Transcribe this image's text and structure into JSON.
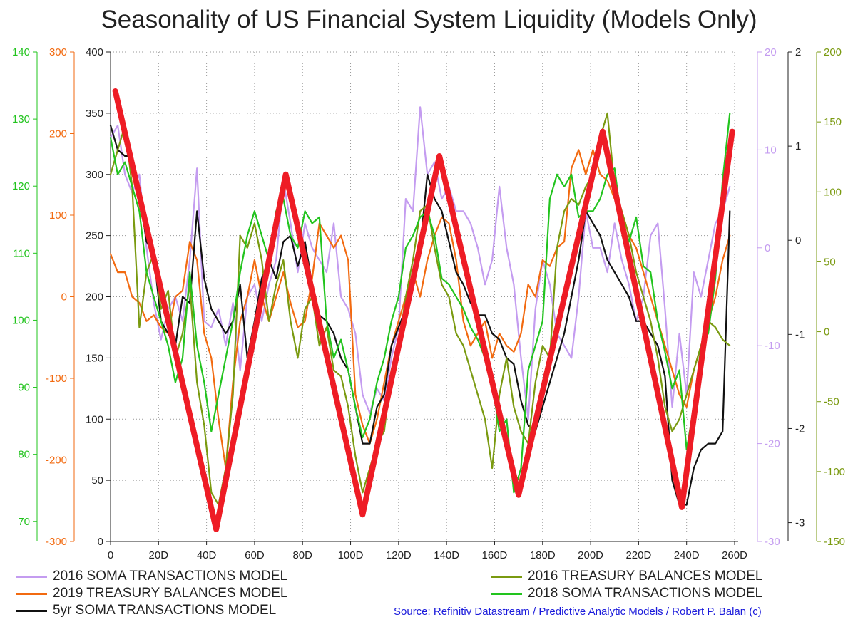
{
  "chart_data": {
    "type": "line",
    "title": "Seasonality of US Financial System Liquidity (Models Only)",
    "x_range": [
      0,
      260
    ],
    "x_ticks": [
      "0",
      "20D",
      "40D",
      "60D",
      "80D",
      "100D",
      "120D",
      "140D",
      "160D",
      "180D",
      "200D",
      "220D",
      "240D",
      "260D"
    ],
    "x_tick_values": [
      0,
      20,
      40,
      60,
      80,
      100,
      120,
      140,
      160,
      180,
      200,
      220,
      240,
      260
    ],
    "grid": true,
    "legend_position": "bottom",
    "source": "Source: Refinitiv Datastream / Predictive Analytic Models  / Robert P. Balan (c)",
    "axes": [
      {
        "id": "green_left",
        "side": "left",
        "color": "#22c41e",
        "range": [
          67,
          140
        ],
        "ticks": [
          "70",
          "80",
          "90",
          "100",
          "110",
          "120",
          "130",
          "140"
        ],
        "tick_values": [
          70,
          80,
          90,
          100,
          110,
          120,
          130,
          140
        ]
      },
      {
        "id": "orange_left",
        "side": "left",
        "color": "#f26a10",
        "range": [
          -300,
          300
        ],
        "ticks": [
          "-300",
          "-200",
          "-100",
          "0",
          "100",
          "200",
          "300"
        ],
        "tick_values": [
          -300,
          -200,
          -100,
          0,
          100,
          200,
          300
        ]
      },
      {
        "id": "main_left",
        "side": "left",
        "color": "#222222",
        "range": [
          0,
          400
        ],
        "ticks": [
          "0",
          "50",
          "100",
          "150",
          "200",
          "250",
          "300",
          "350",
          "400"
        ],
        "tick_values": [
          0,
          50,
          100,
          150,
          200,
          250,
          300,
          350,
          400
        ]
      },
      {
        "id": "purple_right",
        "side": "right",
        "color": "#c49cf0",
        "range": [
          -30,
          20
        ],
        "ticks": [
          "-30",
          "-20",
          "-10",
          "0",
          "10",
          "20"
        ],
        "tick_values": [
          -30,
          -20,
          -10,
          0,
          10,
          20
        ]
      },
      {
        "id": "black_right",
        "side": "right",
        "color": "#222222",
        "range": [
          -3.2,
          2
        ],
        "ticks": [
          "-3",
          "-2",
          "-1",
          "0",
          "1",
          "2"
        ],
        "tick_values": [
          -3,
          -2,
          -1,
          0,
          1,
          2
        ]
      },
      {
        "id": "olive_right",
        "side": "right",
        "color": "#7a9a10",
        "range": [
          -150,
          200
        ],
        "ticks": [
          "-150",
          "-100",
          "-50",
          "0",
          "50",
          "100",
          "150",
          "200"
        ],
        "tick_values": [
          -150,
          -100,
          -50,
          0,
          50,
          100,
          150,
          200
        ]
      }
    ],
    "series": [
      {
        "name": "2016 SOMA TRANSACTIONS MODEL",
        "axis": "main_left",
        "color": "#c49cf0",
        "x": [
          0,
          3,
          6,
          9,
          12,
          15,
          18,
          21,
          24,
          27,
          30,
          33,
          36,
          39,
          42,
          45,
          48,
          51,
          54,
          57,
          60,
          63,
          66,
          69,
          72,
          75,
          78,
          81,
          84,
          87,
          90,
          93,
          96,
          99,
          102,
          105,
          108,
          111,
          114,
          117,
          120,
          123,
          126,
          129,
          132,
          135,
          138,
          141,
          144,
          147,
          150,
          153,
          156,
          159,
          162,
          165,
          168,
          171,
          174,
          177,
          180,
          183,
          186,
          189,
          192,
          195,
          198,
          201,
          204,
          207,
          210,
          213,
          216,
          219,
          222,
          225,
          228,
          231,
          234,
          237,
          240,
          243,
          246,
          249,
          252,
          255,
          258
        ],
        "y": [
          330,
          340,
          300,
          285,
          300,
          240,
          195,
          165,
          190,
          200,
          180,
          230,
          305,
          180,
          175,
          190,
          160,
          195,
          140,
          200,
          210,
          180,
          210,
          230,
          295,
          260,
          220,
          260,
          240,
          230,
          220,
          260,
          200,
          190,
          170,
          120,
          105,
          125,
          115,
          150,
          175,
          280,
          270,
          355,
          300,
          310,
          280,
          290,
          270,
          270,
          260,
          240,
          210,
          230,
          290,
          240,
          210,
          150,
          100,
          190,
          230,
          210,
          170,
          160,
          150,
          200,
          270,
          240,
          240,
          220,
          260,
          230,
          210,
          180,
          200,
          250,
          260,
          190,
          110,
          170,
          120,
          220,
          200,
          230,
          260,
          270,
          290
        ]
      },
      {
        "name": "2019 TREASURY BALANCES MODEL",
        "axis": "main_left",
        "color": "#f26a10",
        "x": [
          0,
          3,
          6,
          9,
          12,
          15,
          18,
          21,
          24,
          27,
          30,
          33,
          36,
          39,
          42,
          45,
          48,
          51,
          54,
          57,
          60,
          63,
          66,
          69,
          72,
          75,
          78,
          81,
          84,
          87,
          90,
          93,
          96,
          99,
          102,
          105,
          108,
          111,
          114,
          117,
          120,
          123,
          126,
          129,
          132,
          135,
          138,
          141,
          144,
          147,
          150,
          153,
          156,
          159,
          162,
          165,
          168,
          171,
          174,
          177,
          180,
          183,
          186,
          189,
          192,
          195,
          198,
          201,
          204,
          207,
          210,
          213,
          216,
          219,
          222,
          225,
          228,
          231,
          234,
          237,
          240,
          243,
          246,
          249,
          252,
          255,
          258
        ],
        "y": [
          235,
          220,
          220,
          200,
          195,
          180,
          185,
          175,
          170,
          200,
          205,
          245,
          230,
          170,
          150,
          100,
          60,
          130,
          180,
          200,
          230,
          200,
          180,
          200,
          220,
          195,
          175,
          180,
          215,
          260,
          250,
          240,
          250,
          230,
          120,
          95,
          80,
          100,
          130,
          160,
          180,
          200,
          220,
          200,
          230,
          250,
          265,
          260,
          230,
          180,
          160,
          170,
          180,
          150,
          170,
          160,
          155,
          170,
          210,
          200,
          230,
          225,
          240,
          245,
          305,
          320,
          300,
          320,
          300,
          295,
          280,
          270,
          250,
          240,
          220,
          200,
          180,
          160,
          140,
          120,
          110,
          140,
          160,
          180,
          200,
          230,
          250
        ]
      },
      {
        "name": "5yr SOMA TRANSACTIONS MODEL",
        "axis": "main_left",
        "color": "#111111",
        "x": [
          0,
          3,
          6,
          9,
          12,
          15,
          18,
          21,
          24,
          27,
          30,
          33,
          36,
          39,
          42,
          45,
          48,
          51,
          54,
          57,
          60,
          63,
          66,
          69,
          72,
          75,
          78,
          81,
          84,
          87,
          90,
          93,
          96,
          99,
          102,
          105,
          108,
          111,
          114,
          117,
          120,
          123,
          126,
          129,
          132,
          135,
          138,
          141,
          144,
          147,
          150,
          153,
          156,
          159,
          162,
          165,
          168,
          171,
          174,
          177,
          180,
          183,
          186,
          189,
          192,
          195,
          198,
          201,
          204,
          207,
          210,
          213,
          216,
          219,
          222,
          225,
          228,
          231,
          234,
          237,
          240,
          243,
          246,
          249,
          252,
          255,
          258
        ],
        "y": [
          340,
          320,
          315,
          315,
          285,
          245,
          235,
          180,
          170,
          160,
          200,
          195,
          270,
          215,
          190,
          180,
          170,
          180,
          210,
          150,
          180,
          215,
          230,
          215,
          245,
          250,
          225,
          245,
          210,
          185,
          180,
          170,
          150,
          140,
          110,
          80,
          80,
          110,
          120,
          160,
          175,
          190,
          210,
          240,
          300,
          280,
          270,
          245,
          220,
          210,
          195,
          185,
          185,
          170,
          165,
          150,
          145,
          115,
          95,
          90,
          110,
          130,
          150,
          170,
          200,
          230,
          270,
          260,
          250,
          230,
          220,
          210,
          200,
          180,
          180,
          170,
          160,
          135,
          50,
          30,
          30,
          60,
          75,
          80,
          80,
          90,
          270
        ]
      },
      {
        "name": "2016 TREASURY BALANCES MODEL",
        "axis": "main_left",
        "color": "#7a9a10",
        "x": [
          0,
          3,
          6,
          9,
          12,
          15,
          18,
          21,
          24,
          27,
          30,
          33,
          36,
          39,
          42,
          45,
          48,
          51,
          54,
          57,
          60,
          63,
          66,
          69,
          72,
          75,
          78,
          81,
          84,
          87,
          90,
          93,
          96,
          99,
          102,
          105,
          108,
          111,
          114,
          117,
          120,
          123,
          126,
          129,
          132,
          135,
          138,
          141,
          144,
          147,
          150,
          153,
          156,
          159,
          162,
          165,
          168,
          171,
          174,
          177,
          180,
          183,
          186,
          189,
          192,
          195,
          198,
          201,
          204,
          207,
          210,
          213,
          216,
          219,
          222,
          225,
          228,
          231,
          234,
          237,
          240,
          243,
          246,
          249,
          252,
          255,
          258
        ],
        "y": [
          300,
          320,
          340,
          290,
          175,
          220,
          235,
          190,
          205,
          150,
          170,
          210,
          130,
          95,
          40,
          30,
          60,
          120,
          250,
          240,
          260,
          230,
          180,
          210,
          230,
          180,
          150,
          190,
          200,
          160,
          175,
          140,
          135,
          110,
          70,
          40,
          60,
          80,
          90,
          140,
          160,
          200,
          230,
          270,
          275,
          240,
          210,
          200,
          170,
          160,
          140,
          120,
          100,
          60,
          120,
          150,
          110,
          90,
          80,
          130,
          160,
          150,
          240,
          270,
          280,
          275,
          290,
          300,
          330,
          350,
          290,
          270,
          250,
          220,
          200,
          180,
          150,
          110,
          90,
          100,
          120,
          140,
          160,
          180,
          175,
          165,
          160
        ]
      },
      {
        "name": "2018 SOMA TRANSACTIONS MODEL",
        "axis": "main_left",
        "color": "#22c41e",
        "x": [
          0,
          3,
          6,
          9,
          12,
          15,
          18,
          21,
          24,
          27,
          30,
          33,
          36,
          39,
          42,
          45,
          48,
          51,
          54,
          57,
          60,
          63,
          66,
          69,
          72,
          75,
          78,
          81,
          84,
          87,
          90,
          93,
          96,
          99,
          102,
          105,
          108,
          111,
          114,
          117,
          120,
          123,
          126,
          129,
          132,
          135,
          138,
          141,
          144,
          147,
          150,
          153,
          156,
          159,
          162,
          165,
          168,
          171,
          174,
          177,
          180,
          183,
          186,
          189,
          192,
          195,
          198,
          201,
          204,
          207,
          210,
          213,
          216,
          219,
          222,
          225,
          228,
          231,
          234,
          237,
          240,
          243,
          246,
          249,
          252,
          255,
          258
        ],
        "y": [
          330,
          300,
          310,
          290,
          270,
          220,
          200,
          180,
          160,
          130,
          150,
          220,
          160,
          130,
          90,
          120,
          150,
          180,
          220,
          250,
          270,
          250,
          230,
          270,
          280,
          250,
          240,
          270,
          260,
          265,
          180,
          150,
          165,
          140,
          110,
          85,
          100,
          130,
          150,
          180,
          200,
          240,
          250,
          265,
          270,
          250,
          215,
          210,
          200,
          190,
          175,
          165,
          150,
          130,
          90,
          100,
          40,
          60,
          140,
          160,
          180,
          280,
          300,
          290,
          300,
          265,
          270,
          270,
          280,
          300,
          305,
          260,
          245,
          265,
          225,
          220,
          180,
          155,
          125,
          140,
          75,
          110,
          160,
          170,
          215,
          295,
          350
        ]
      },
      {
        "name": "",
        "axis": "main_left",
        "color": "#ee1c25",
        "x": [
          2,
          44,
          73,
          105,
          137,
          170,
          205,
          238,
          259
        ],
        "y": [
          368,
          10,
          300,
          22,
          315,
          38,
          335,
          28,
          335
        ]
      }
    ]
  },
  "legend_left": [
    {
      "label": "2016 SOMA TRANSACTIONS MODEL",
      "color": "#c49cf0"
    },
    {
      "label": "2019 TREASURY BALANCES MODEL",
      "color": "#f26a10"
    },
    {
      "label": "5yr SOMA TRANSACTIONS MODEL",
      "color": "#111111"
    }
  ],
  "legend_right": [
    {
      "label": "2016 TREASURY BALANCES MODEL",
      "color": "#7a9a10"
    },
    {
      "label": "2018 SOMA TRANSACTIONS MODEL",
      "color": "#22c41e"
    }
  ]
}
